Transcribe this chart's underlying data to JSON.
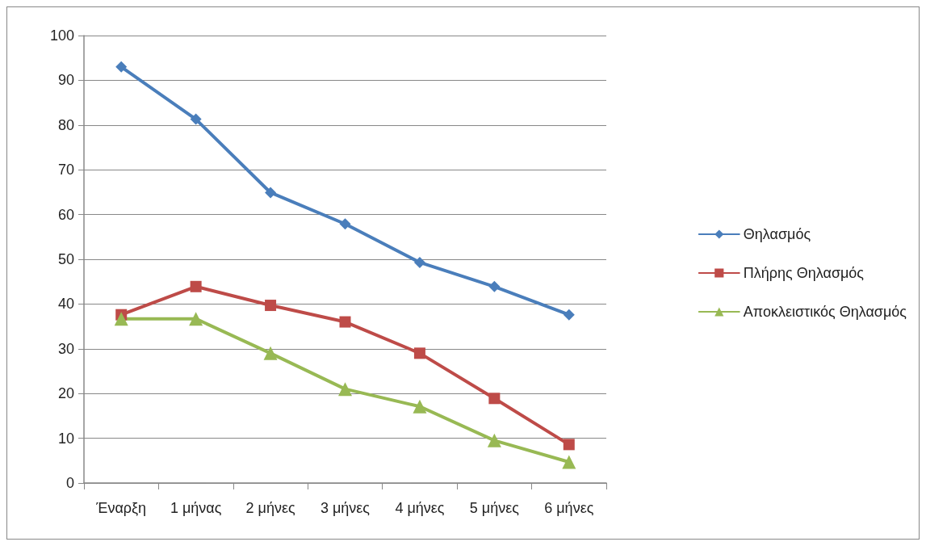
{
  "chart_data": {
    "type": "line",
    "categories": [
      "Έναρξη",
      "1 μήνας",
      "2 μήνες",
      "3 μήνες",
      "4 μήνες",
      "5 μήνες",
      "6 μήνες"
    ],
    "series": [
      {
        "name": "Θηλασμός",
        "color": "#4a7ebb",
        "marker": "diamond",
        "values": [
          93,
          81.3,
          64.9,
          57.9,
          49.3,
          43.9,
          37.6
        ]
      },
      {
        "name": "Πλήρης Θηλασμός",
        "color": "#be4b48",
        "marker": "square",
        "values": [
          37.6,
          43.9,
          39.7,
          36,
          29,
          18.9,
          8.6
        ]
      },
      {
        "name": "Αποκλειστικός Θηλασμός",
        "color": "#98b954",
        "marker": "triangle",
        "values": [
          36.7,
          36.7,
          29,
          21,
          17.1,
          9.5,
          4.7
        ]
      }
    ],
    "ylim": [
      0,
      100
    ],
    "yticks": [
      0,
      10,
      20,
      30,
      40,
      50,
      60,
      70,
      80,
      90,
      100
    ],
    "grid": "y",
    "legend": "right",
    "line_style": "solid"
  }
}
